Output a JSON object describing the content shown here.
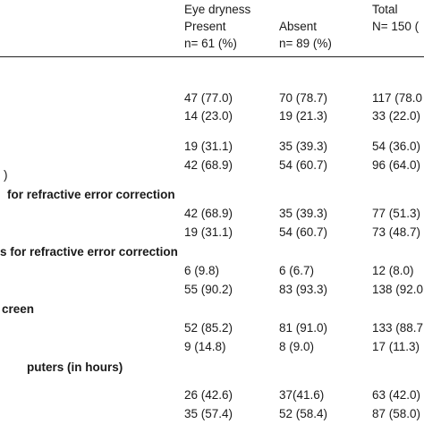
{
  "header": {
    "group_title": "Eye dryness",
    "present_label": "Present",
    "present_n": "n= 61 (%)",
    "absent_label": "Absent",
    "absent_n": "n= 89 (%)",
    "total_label": "Total",
    "total_n": "N= 150 ("
  },
  "sections": [
    {
      "label": ")",
      "bold": false
    },
    {
      "label": "for refractive error correction",
      "bold": true
    },
    {
      "label": "s for refractive error correction",
      "bold": true
    },
    {
      "label": "creen",
      "bold": true
    },
    {
      "label": "puters (in hours)",
      "bold": true
    }
  ],
  "rows": [
    {
      "present": "47 (77.0)",
      "absent": "70 (78.7)",
      "total": "117 (78.0"
    },
    {
      "present": "14 (23.0)",
      "absent": "19 (21.3)",
      "total": "33 (22.0)"
    },
    {
      "present": "19 (31.1)",
      "absent": "35 (39.3)",
      "total": "54 (36.0)"
    },
    {
      "present": "42 (68.9)",
      "absent": "54 (60.7)",
      "total": "96 (64.0)"
    },
    {
      "present": "42 (68.9)",
      "absent": "35 (39.3)",
      "total": "77 (51.3)"
    },
    {
      "present": "19 (31.1)",
      "absent": "54 (60.7)",
      "total": "73 (48.7)"
    },
    {
      "present": "6 (9.8)",
      "absent": "6 (6.7)",
      "total": "12 (8.0)"
    },
    {
      "present": "55 (90.2)",
      "absent": "83 (93.3)",
      "total": "138 (92.0"
    },
    {
      "present": "52 (85.2)",
      "absent": "81 (91.0)",
      "total": "133 (88.7"
    },
    {
      "present": "9 (14.8)",
      "absent": "8 (9.0)",
      "total": "17 (11.3)"
    },
    {
      "present": "26 (42.6)",
      "absent": "37(41.6)",
      "total": "63 (42.0)"
    },
    {
      "present": "35 (57.4)",
      "absent": "52 (58.4)",
      "total": "87 (58.0)"
    }
  ]
}
